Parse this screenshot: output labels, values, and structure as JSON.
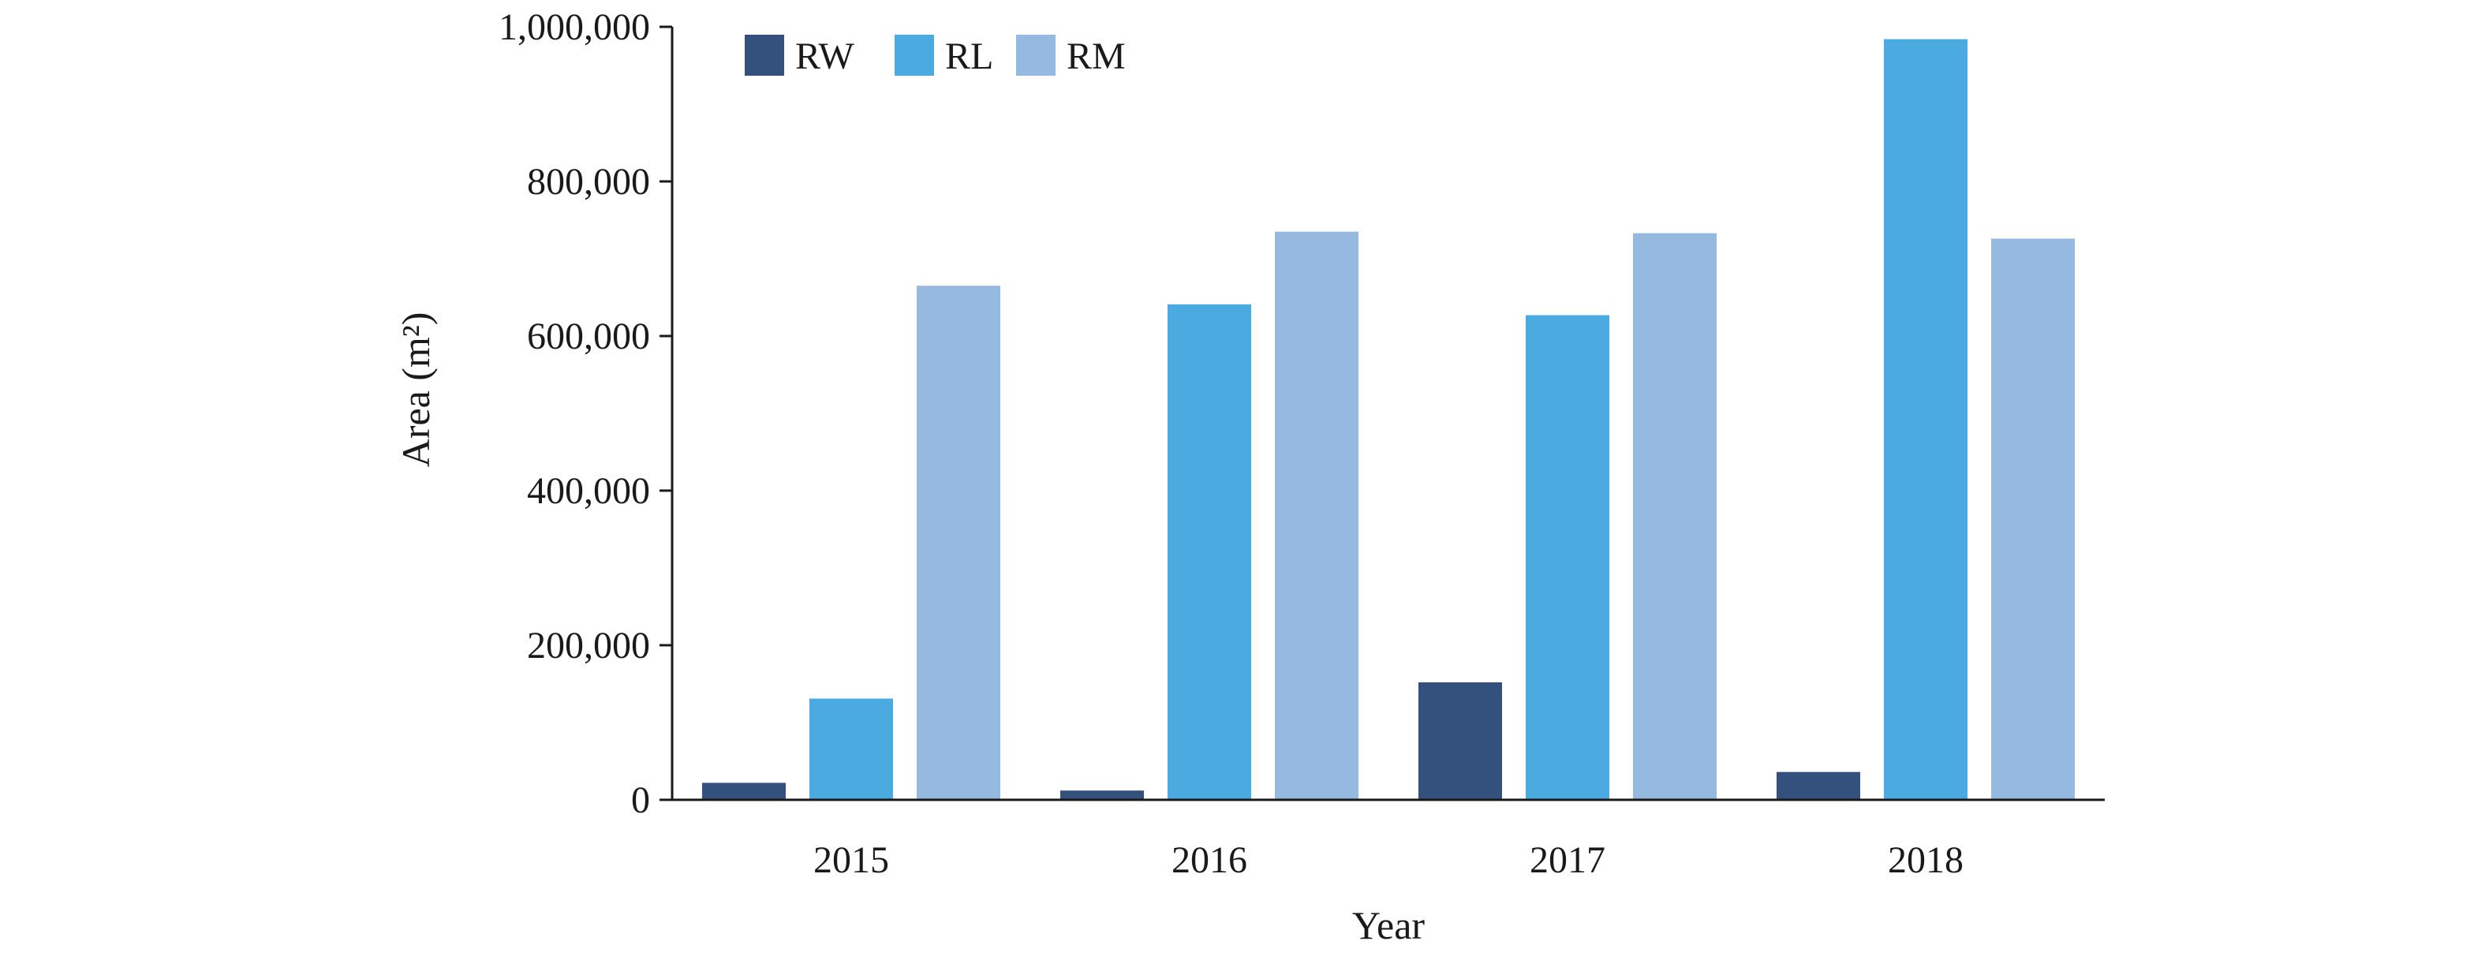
{
  "chart_data": {
    "type": "bar",
    "title": "",
    "xlabel": "Year",
    "ylabel": "Area (m²)",
    "categories": [
      "2015",
      "2016",
      "2017",
      "2018"
    ],
    "ylim": [
      0,
      1000000
    ],
    "yticks": [
      {
        "value": 0,
        "label": "0"
      },
      {
        "value": 200000,
        "label": "200,000"
      },
      {
        "value": 400000,
        "label": "400,000"
      },
      {
        "value": 600000,
        "label": "600,000"
      },
      {
        "value": 800000,
        "label": "800,000"
      },
      {
        "value": 1000000,
        "label": "1,000,000"
      }
    ],
    "series": [
      {
        "name": "RW",
        "color": "#34517e",
        "values": [
          22000,
          12000,
          152000,
          36000
        ]
      },
      {
        "name": "RL",
        "color": "#4baae0",
        "values": [
          131000,
          641000,
          627000,
          984000
        ]
      },
      {
        "name": "RM",
        "color": "#95b9df",
        "values": [
          665000,
          735000,
          733000,
          726000
        ]
      }
    ],
    "legend": "top-left",
    "grid": false
  }
}
